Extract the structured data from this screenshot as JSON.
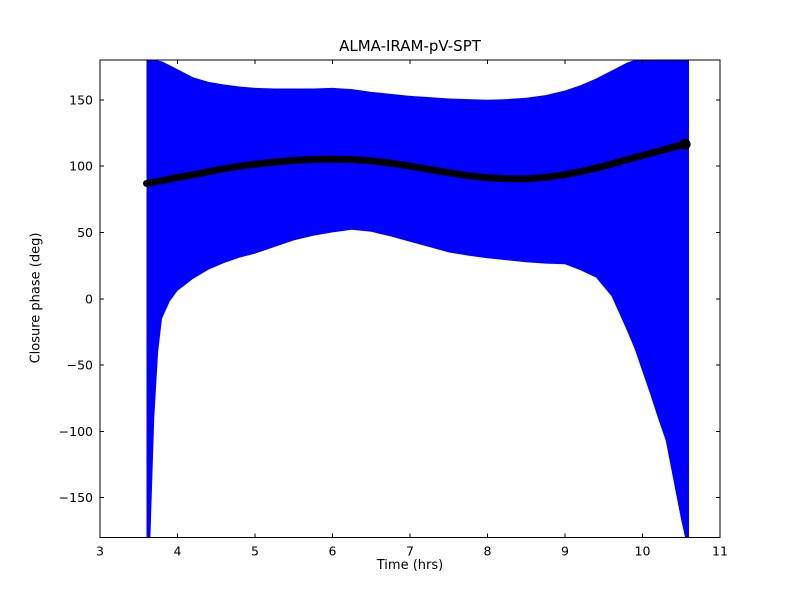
{
  "chart_data": {
    "type": "line",
    "title": "ALMA-IRAM-pV-SPT",
    "xlabel": "Time (hrs)",
    "ylabel": "Closure phase (deg)",
    "xlim": [
      3,
      11
    ],
    "ylim": [
      -180,
      180
    ],
    "xticks": [
      3,
      4,
      5,
      6,
      7,
      8,
      9,
      10,
      11
    ],
    "xtick_labels": [
      "3",
      "4",
      "5",
      "6",
      "7",
      "8",
      "9",
      "10",
      "11"
    ],
    "yticks": [
      -150,
      -100,
      -50,
      0,
      50,
      100,
      150
    ],
    "ytick_labels": [
      "−150",
      "−100",
      "−50",
      "0",
      "50",
      "100",
      "150"
    ],
    "background_color": "#ffffff",
    "frame_color": "#000000",
    "legend": "none",
    "grid": false,
    "series": [
      {
        "name": "error-envelope",
        "type": "band",
        "color": "#0000ff",
        "x": [
          3.6,
          3.65,
          3.7,
          3.75,
          3.8,
          3.9,
          4.0,
          4.2,
          4.4,
          4.6,
          4.8,
          5.0,
          5.25,
          5.5,
          5.75,
          6.0,
          6.25,
          6.5,
          6.75,
          7.0,
          7.25,
          7.5,
          7.75,
          8.0,
          8.25,
          8.5,
          8.75,
          9.0,
          9.2,
          9.4,
          9.6,
          9.8,
          9.9,
          10.0,
          10.1,
          10.2,
          10.3,
          10.4,
          10.5,
          10.55,
          10.6
        ],
        "upper": [
          180,
          180,
          180,
          179.5,
          179,
          176,
          173,
          167,
          163.5,
          161.5,
          160,
          159,
          158.5,
          158.5,
          158.5,
          159,
          158,
          156,
          154.5,
          153,
          152,
          151,
          150.5,
          150,
          150.5,
          151.5,
          153.5,
          157,
          161,
          166,
          172,
          178,
          180,
          180,
          180,
          180,
          180,
          180,
          180,
          180,
          180
        ],
        "lower": [
          -180,
          -180,
          -90,
          -40,
          -15,
          -2,
          6,
          15,
          22,
          27,
          31,
          34,
          39,
          44,
          47.5,
          50,
          52,
          50.5,
          47,
          43,
          39,
          35,
          32.5,
          30.5,
          29,
          27.5,
          26.5,
          26,
          21.5,
          16,
          2,
          -24,
          -38,
          -55,
          -72,
          -90,
          -107,
          -137,
          -167,
          -180,
          -180
        ]
      },
      {
        "name": "closure-phase",
        "type": "line",
        "color": "#000000",
        "linewidth": 7,
        "x": [
          3.6,
          3.8,
          4.0,
          4.25,
          4.5,
          4.75,
          5.0,
          5.25,
          5.5,
          5.75,
          6.0,
          6.25,
          6.5,
          6.75,
          7.0,
          7.25,
          7.5,
          7.75,
          8.0,
          8.25,
          8.5,
          8.75,
          9.0,
          9.25,
          9.5,
          9.75,
          10.0,
          10.25,
          10.45,
          10.55
        ],
        "y": [
          87,
          89,
          91.5,
          94,
          97,
          99.5,
          101.5,
          103,
          104.3,
          105,
          105.3,
          105,
          104,
          102.3,
          100,
          97.5,
          95,
          92.8,
          91.3,
          90.5,
          90.5,
          91.5,
          93.5,
          96.5,
          100,
          104,
          108,
          112,
          115,
          116.5
        ],
        "end_marker": {
          "x": 10.55,
          "y": 116.5,
          "radius": 5.5
        }
      }
    ]
  }
}
